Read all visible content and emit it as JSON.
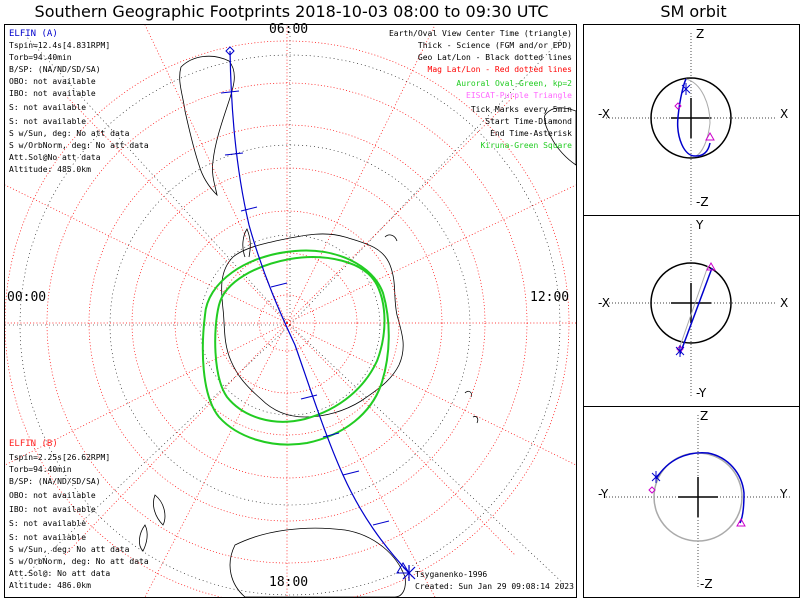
{
  "title": "Southern Geographic Footprints 2018-10-03 08:00 to 09:30 UTC",
  "sm_title": "SM orbit",
  "map": {
    "time_top": "06:00",
    "time_left": "00:00",
    "time_right": "12:00",
    "time_bottom": "18:00"
  },
  "elfin_a": {
    "name": "ELFIN (A)",
    "color": "#0000cc",
    "lines": [
      "Tspin=12.4s[4.831RPM]",
      "Torb=94.40min",
      "B/SP: (NA/ND/SD/SA)",
      "OBO: not available",
      "IBO: not available",
      "S: not available",
      "S: not available",
      "S w/Sun, deg: No att data",
      "S w/OrbNorm, deg: No att data",
      "Att.Sol@No att data",
      "Altitude: 485.0km"
    ]
  },
  "elfin_b": {
    "name": "ELFIN (B)",
    "color": "#ff2222",
    "lines": [
      "Tspin=2.25s[26.62RPM]",
      "Torb=94.40min",
      "B/SP: (NA/ND/SD/SA)",
      "OBO: not available",
      "IBO: not available",
      "S: not available",
      "S: not available",
      "S w/Sun, deg: No att data",
      "S w/OrbNorm, deg: No att data",
      "Att.Sol@: No att data",
      "Altitude: 486.0km"
    ]
  },
  "legend": [
    {
      "text": "Earth/Oval View Center Time (triangle)",
      "color": "#000000"
    },
    {
      "text": "Thick - Science (FGM and/or EPD)",
      "color": "#000000"
    },
    {
      "text": "Geo Lat/Lon - Black dotted lines",
      "color": "#000000"
    },
    {
      "text": "Mag Lat/Lon - Red dotted lines",
      "color": "#ff0000"
    },
    {
      "text": "Auroral Oval-Green, kp=2",
      "color": "#22cc22"
    },
    {
      "text": "EISCAT-Purple Triangle",
      "color": "#ff66ff"
    },
    {
      "text": "Tick Marks every 5min",
      "color": "#000000"
    },
    {
      "text": "Start Time-Diamond",
      "color": "#000000"
    },
    {
      "text": "End Time-Asterisk",
      "color": "#000000"
    },
    {
      "text": "Kiruna-Green Square",
      "color": "#22cc22"
    }
  ],
  "footer": {
    "model": "Tsyganenko-1996",
    "created": "Created: Sun Jan 29 09:08:14 2023"
  },
  "sm_panels": [
    {
      "top": "Z",
      "bottom": "-Z",
      "left": "-X",
      "right": "X"
    },
    {
      "top": "Y",
      "bottom": "-Y",
      "left": "-X",
      "right": "X"
    },
    {
      "top": "Z",
      "bottom": "-Z",
      "left": "-Y",
      "right": "Y"
    }
  ],
  "colors": {
    "orbit": "#0000cc",
    "mag_grid": "#ff0000",
    "oval": "#22cc22",
    "marker": "#cc00cc"
  }
}
